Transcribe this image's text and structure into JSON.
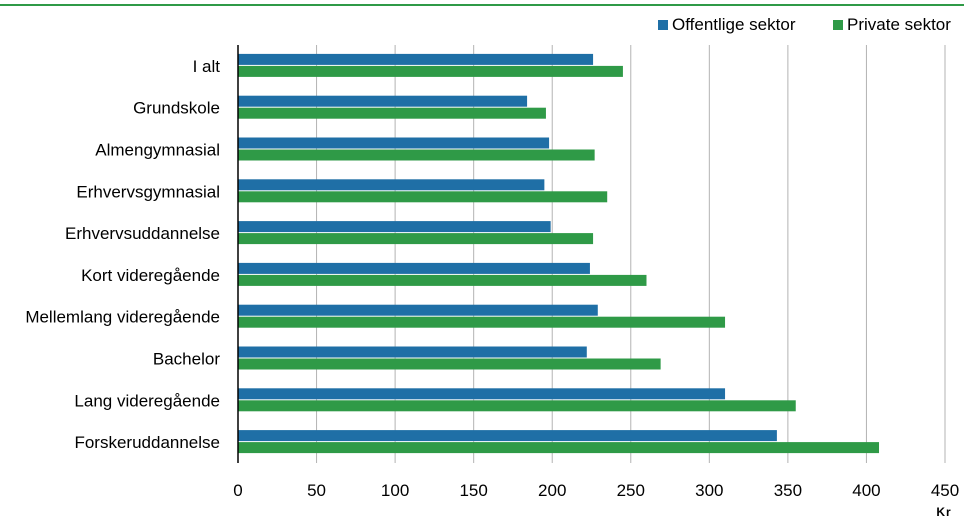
{
  "chart_data": {
    "type": "bar",
    "orientation": "horizontal",
    "categories": [
      "I alt",
      "Grundskole",
      "Almengymnasial",
      "Erhvervsgymnasial",
      "Erhvervsuddannelse",
      "Kort videregående",
      "Mellemlang videregående",
      "Bachelor",
      "Lang videregående",
      "Forskeruddannelse"
    ],
    "series": [
      {
        "name": "Offentlige sektor",
        "color": "#1f6fa6",
        "values": [
          226,
          184,
          198,
          195,
          199,
          224,
          229,
          222,
          310,
          343
        ]
      },
      {
        "name": "Private sektor",
        "color": "#2f9a47",
        "values": [
          245,
          196,
          227,
          235,
          226,
          260,
          310,
          269,
          355,
          408
        ]
      }
    ],
    "xlim": [
      0,
      450
    ],
    "xticks": [
      0,
      50,
      100,
      150,
      200,
      250,
      300,
      350,
      400,
      450
    ],
    "xunit": "Kr",
    "grid": true,
    "legend_position": "top-right",
    "top_rule_color": "#2f9a47"
  }
}
